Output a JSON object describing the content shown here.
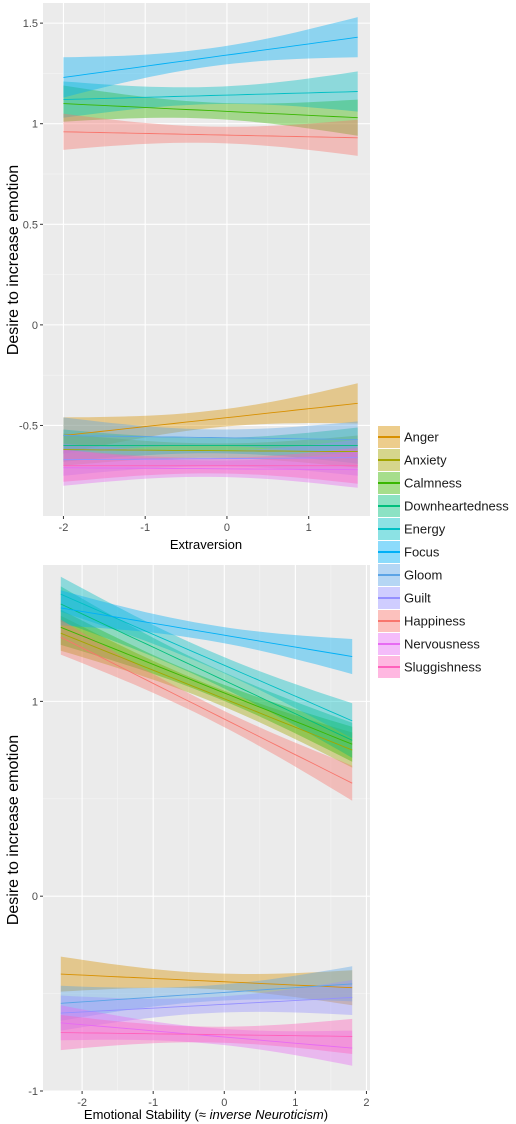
{
  "colors": {
    "Anger": "#D89000",
    "Anxiety": "#A3A500",
    "Calmness": "#39B600",
    "Downheartedness": "#00BF7D",
    "Energy": "#00BFC4",
    "Focus": "#00B0F6",
    "Gloom": "#5BA4E6",
    "Guilt": "#9590FF",
    "Happiness": "#F8766D",
    "Nervousness": "#E76BF3",
    "Sluggishness": "#FF62BC"
  },
  "legend": {
    "entries": [
      "Anger",
      "Anxiety",
      "Calmness",
      "Downheartedness",
      "Energy",
      "Focus",
      "Gloom",
      "Guilt",
      "Happiness",
      "Nervousness",
      "Sluggishness"
    ]
  },
  "chart_data": [
    {
      "type": "line",
      "xlabel": "Extraversion",
      "ylabel": "Desire to increase emotion",
      "xlim": [
        -2.25,
        1.75
      ],
      "ylim": [
        -0.95,
        1.6
      ],
      "xticks": [
        -2,
        -1,
        0,
        1
      ],
      "xtick_labels": [
        "-2",
        "-1",
        "0",
        "1"
      ],
      "yticks": [
        -0.5,
        0,
        0.5,
        1,
        1.5
      ],
      "ytick_labels": [
        "-0.5",
        "0",
        "0.5",
        "1",
        "1.5"
      ],
      "grid": true,
      "legend_position": "right",
      "series": [
        {
          "name": "Anger",
          "x": [
            -2,
            1.6
          ],
          "y": [
            -0.55,
            -0.39
          ],
          "lo": [
            -0.64,
            -0.49
          ],
          "hi": [
            -0.46,
            -0.29
          ]
        },
        {
          "name": "Anxiety",
          "x": [
            -2,
            1.6
          ],
          "y": [
            -0.62,
            -0.63
          ],
          "lo": [
            -0.7,
            -0.71
          ],
          "hi": [
            -0.54,
            -0.55
          ]
        },
        {
          "name": "Calmness",
          "x": [
            -2,
            1.6
          ],
          "y": [
            1.1,
            1.03
          ],
          "lo": [
            1.01,
            0.94
          ],
          "hi": [
            1.19,
            1.12
          ]
        },
        {
          "name": "Downheartedness",
          "x": [
            -2,
            1.6
          ],
          "y": [
            -0.6,
            -0.6
          ],
          "lo": [
            -0.68,
            -0.69
          ],
          "hi": [
            -0.52,
            -0.51
          ]
        },
        {
          "name": "Energy",
          "x": [
            -2,
            1.6
          ],
          "y": [
            1.12,
            1.16
          ],
          "lo": [
            1.03,
            1.06
          ],
          "hi": [
            1.21,
            1.26
          ]
        },
        {
          "name": "Focus",
          "x": [
            -2,
            1.6
          ],
          "y": [
            1.23,
            1.43
          ],
          "lo": [
            1.13,
            1.33
          ],
          "hi": [
            1.33,
            1.53
          ]
        },
        {
          "name": "Gloom",
          "x": [
            -2,
            1.6
          ],
          "y": [
            -0.55,
            -0.57
          ],
          "lo": [
            -0.64,
            -0.66
          ],
          "hi": [
            -0.46,
            -0.48
          ]
        },
        {
          "name": "Guilt",
          "x": [
            -2,
            1.6
          ],
          "y": [
            -0.67,
            -0.66
          ],
          "lo": [
            -0.75,
            -0.75
          ],
          "hi": [
            -0.59,
            -0.57
          ]
        },
        {
          "name": "Happiness",
          "x": [
            -2,
            1.6
          ],
          "y": [
            0.96,
            0.93
          ],
          "lo": [
            0.87,
            0.84
          ],
          "hi": [
            1.05,
            1.02
          ]
        },
        {
          "name": "Nervousness",
          "x": [
            -2,
            1.6
          ],
          "y": [
            -0.71,
            -0.72
          ],
          "lo": [
            -0.8,
            -0.81
          ],
          "hi": [
            -0.62,
            -0.63
          ]
        },
        {
          "name": "Sluggishness",
          "x": [
            -2,
            1.6
          ],
          "y": [
            -0.7,
            -0.7
          ],
          "lo": [
            -0.78,
            -0.79
          ],
          "hi": [
            -0.62,
            -0.61
          ]
        }
      ]
    },
    {
      "type": "line",
      "xlabel": "Emotional Stability (≈ inverse Neuroticism)",
      "xlabel_main": "Emotional Stability (≈ ",
      "xlabel_italic": "inverse Neuroticism",
      "xlabel_tail": ")",
      "ylabel": "Desire to increase emotion",
      "xlim": [
        -2.55,
        2.05
      ],
      "ylim": [
        -1.0,
        1.7
      ],
      "xticks": [
        -2,
        -1,
        0,
        1,
        2
      ],
      "xtick_labels": [
        "-2",
        "-1",
        "0",
        "1",
        "2"
      ],
      "yticks": [
        -1,
        0,
        1
      ],
      "ytick_labels": [
        "-1",
        "0",
        "1"
      ],
      "grid": true,
      "legend_position": "right",
      "series": [
        {
          "name": "Anger",
          "x": [
            -2.3,
            1.8
          ],
          "y": [
            -0.4,
            -0.47
          ],
          "lo": [
            -0.49,
            -0.56
          ],
          "hi": [
            -0.31,
            -0.38
          ]
        },
        {
          "name": "Anxiety",
          "x": [
            -2.3,
            1.8
          ],
          "y": [
            1.35,
            0.75
          ],
          "lo": [
            1.26,
            0.66
          ],
          "hi": [
            1.44,
            0.84
          ]
        },
        {
          "name": "Calmness",
          "x": [
            -2.3,
            1.8
          ],
          "y": [
            1.38,
            0.78
          ],
          "lo": [
            1.29,
            0.69
          ],
          "hi": [
            1.47,
            0.87
          ]
        },
        {
          "name": "Downheartedness",
          "x": [
            -2.3,
            1.8
          ],
          "y": [
            1.5,
            0.8
          ],
          "lo": [
            1.41,
            0.71
          ],
          "hi": [
            1.59,
            0.89
          ]
        },
        {
          "name": "Energy",
          "x": [
            -2.3,
            1.8
          ],
          "y": [
            1.55,
            0.9
          ],
          "lo": [
            1.46,
            0.81
          ],
          "hi": [
            1.64,
            0.99
          ]
        },
        {
          "name": "Focus",
          "x": [
            -2.3,
            1.8
          ],
          "y": [
            1.48,
            1.23
          ],
          "lo": [
            1.39,
            1.14
          ],
          "hi": [
            1.57,
            1.32
          ]
        },
        {
          "name": "Gloom",
          "x": [
            -2.3,
            1.8
          ],
          "y": [
            -0.55,
            -0.45
          ],
          "lo": [
            -0.64,
            -0.54
          ],
          "hi": [
            -0.46,
            -0.36
          ]
        },
        {
          "name": "Guilt",
          "x": [
            -2.3,
            1.8
          ],
          "y": [
            -0.6,
            -0.52
          ],
          "lo": [
            -0.69,
            -0.61
          ],
          "hi": [
            -0.51,
            -0.43
          ]
        },
        {
          "name": "Happiness",
          "x": [
            -2.3,
            1.8
          ],
          "y": [
            1.33,
            0.58
          ],
          "lo": [
            1.24,
            0.49
          ],
          "hi": [
            1.42,
            0.67
          ]
        },
        {
          "name": "Nervousness",
          "x": [
            -2.3,
            1.8
          ],
          "y": [
            -0.65,
            -0.78
          ],
          "lo": [
            -0.74,
            -0.87
          ],
          "hi": [
            -0.56,
            -0.69
          ]
        },
        {
          "name": "Sluggishness",
          "x": [
            -2.3,
            1.8
          ],
          "y": [
            -0.7,
            -0.72
          ],
          "lo": [
            -0.79,
            -0.81
          ],
          "hi": [
            -0.61,
            -0.63
          ]
        }
      ]
    }
  ]
}
